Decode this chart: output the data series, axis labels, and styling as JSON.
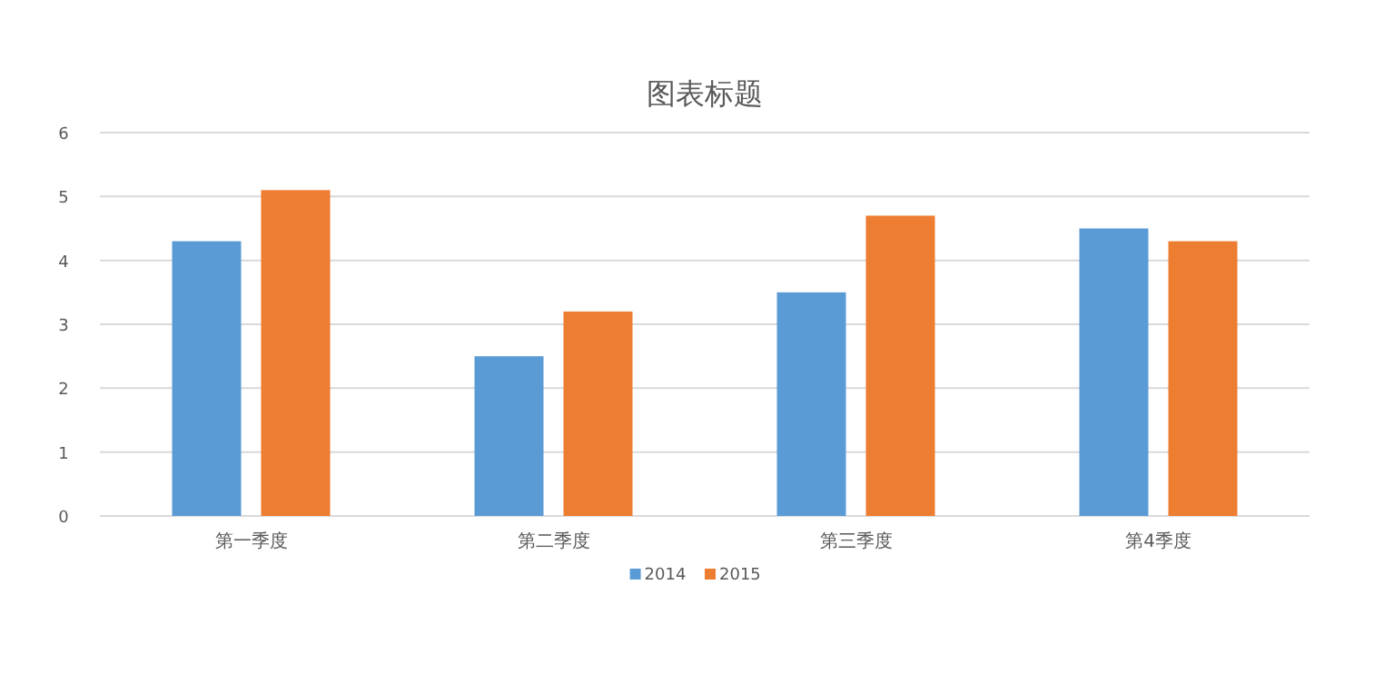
{
  "chart_data": {
    "type": "bar",
    "title": "图表标题",
    "categories": [
      "第一季度",
      "第二季度",
      "第三季度",
      "第4季度"
    ],
    "series": [
      {
        "name": "2014",
        "color": "#5b9bd5",
        "values": [
          4.3,
          2.5,
          3.5,
          4.5
        ]
      },
      {
        "name": "2015",
        "color": "#ed7d31",
        "values": [
          5.1,
          3.2,
          4.7,
          4.3
        ]
      }
    ],
    "ylim": [
      0,
      6
    ],
    "yticks": [
      0,
      1,
      2,
      3,
      4,
      5,
      6
    ],
    "grid": "y",
    "legend": "bottom"
  }
}
